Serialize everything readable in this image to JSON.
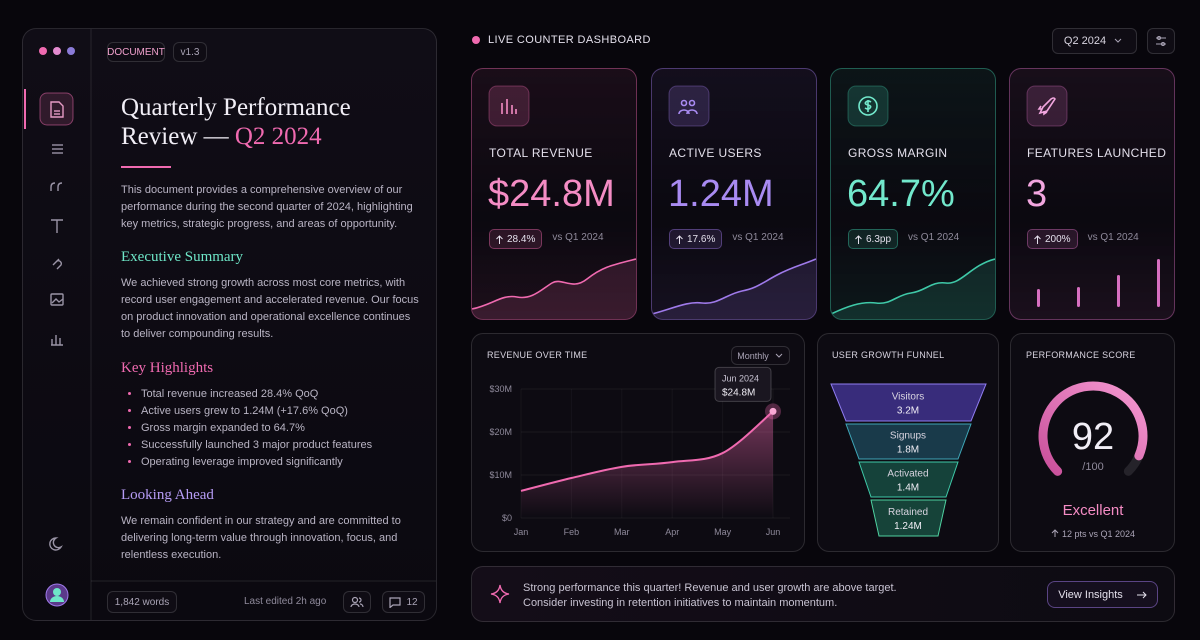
{
  "window": {
    "badge": "DOCUMENT",
    "version": "v1.3"
  },
  "document": {
    "title": "Quarterly Performance Review —",
    "title_accent": "Q2 2024",
    "intro": "This document provides a comprehensive overview of our performance during the second quarter of 2024, highlighting key metrics, strategic progress, and areas of opportunity.",
    "summary": {
      "heading": "Executive Summary",
      "body": "We achieved strong growth across most core metrics, with record user engagement and accelerated revenue. Our focus on product innovation and operational excellence continues to deliver compounding results."
    },
    "highlights": {
      "heading": "Key Highlights",
      "items": [
        "Total revenue increased 28.4% QoQ",
        "Active users grew to 1.24M (+17.6% QoQ)",
        "Gross margin expanded to 64.7%",
        "Successfully launched 3 major product features",
        "Operating leverage improved significantly"
      ]
    },
    "outlook": {
      "heading": "Looking Ahead",
      "body": "We remain confident in our strategy and are committed to delivering long-term value through innovation, focus, and relentless execution."
    }
  },
  "footer": {
    "words": "1,842 words",
    "edited": "Last edited 2h ago",
    "comments": 12
  },
  "header": {
    "title": "LIVE COUNTER DASHBOARD",
    "period": "Q2 2024"
  },
  "kpis": [
    {
      "label": "TOTAL REVENUE",
      "value": "$24.8M",
      "change": "28.4%",
      "compare": "vs Q1 2024"
    },
    {
      "label": "ACTIVE USERS",
      "value": "1.24M",
      "change": "17.6%",
      "compare": "vs Q1 2024"
    },
    {
      "label": "GROSS MARGIN",
      "value": "64.7%",
      "change": "6.3pp",
      "compare": "vs Q1 2024"
    },
    {
      "label": "FEATURES LAUNCHED",
      "value": "3",
      "change": "200%",
      "compare": "vs Q1 2024"
    }
  ],
  "chart_data": {
    "type": "line",
    "title": "REVENUE OVER TIME",
    "control": "Monthly",
    "tooltip_title": "Jun 2024",
    "categories": [
      "Jan",
      "Feb",
      "Mar",
      "Apr",
      "May",
      "Jun"
    ],
    "values": [
      6.3,
      9.3,
      11.9,
      13,
      15.1,
      24.8
    ],
    "value_labels": [
      null,
      null,
      null,
      null,
      null,
      "$24.8M"
    ],
    "color": "#f06ab0",
    "ylim": [
      0,
      30
    ],
    "yticks": [
      {
        "value": 0,
        "label": "$0"
      },
      {
        "value": 10,
        "label": "$10M"
      },
      {
        "value": 20,
        "label": "$20M"
      },
      {
        "value": 30,
        "label": "$30M"
      }
    ],
    "grid": true
  },
  "funnel": {
    "title": "USER GROWTH FUNNEL",
    "stages": [
      {
        "name": "Visitors",
        "value": "3.2M"
      },
      {
        "name": "Signups",
        "value": "1.8M"
      },
      {
        "name": "Activated",
        "value": "1.4M"
      },
      {
        "name": "Retained",
        "value": "1.24M"
      }
    ]
  },
  "score": {
    "title": "PERFORMANCE SCORE",
    "value": 92,
    "max": {
      "value": 100,
      "label": "/100"
    },
    "rating": "Excellent",
    "change": "12 pts vs Q1 2024"
  },
  "banner": {
    "lines": [
      "Strong performance this quarter! Revenue and user growth are above target.",
      "Consider investing in retention initiatives to maintain momentum."
    ],
    "button": "View Insights"
  }
}
